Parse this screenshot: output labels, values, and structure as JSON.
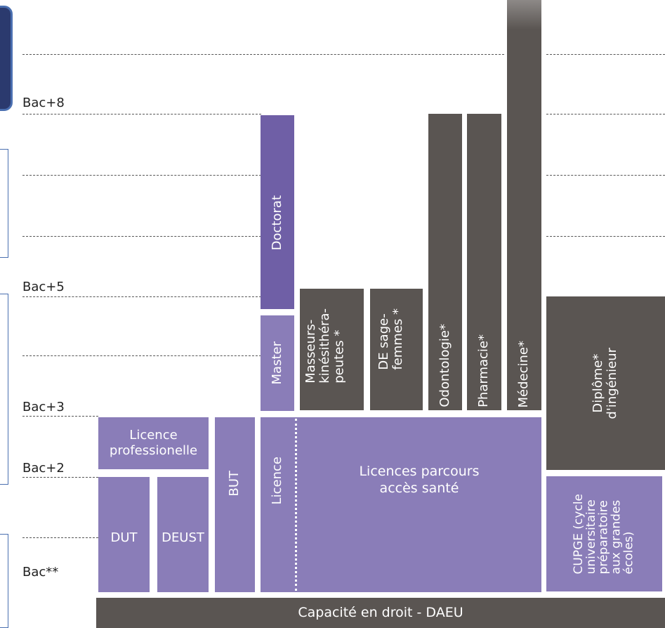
{
  "levels": {
    "bac8": "Bac+8",
    "bac5": "Bac+5",
    "bac3": "Bac+3",
    "bac2": "Bac+2",
    "bac": "Bac**"
  },
  "boxes": {
    "licence_pro": "Licence\nprofessionelle",
    "dut": "DUT",
    "deust": "DEUST",
    "but": "BUT",
    "licence": "Licence",
    "licences_sante": "Licences parcours\naccès santé",
    "master": "Master",
    "doctorat": "Doctorat",
    "kine": "Masseurs-\nkinésithéra-\npeutes *",
    "sage_femmes": "DE sage-\nfemmes *",
    "odontologie": "Odontologie*",
    "pharmacie": "Pharmacie*",
    "medecine": "Médecine*",
    "ingenieur": "Diplôme*\nd'ingénieur",
    "cupge": "CUPGE (cycle\nuniversitaire\npréparatoire\naux grandes\nécoles)",
    "capacite": "Capacité en droit - DAEU"
  },
  "colors": {
    "purple": "#8a7db8",
    "dark_purple": "#6f5fa6",
    "gray": "#5a5552",
    "bracket_blue": "#4a6fb0"
  }
}
